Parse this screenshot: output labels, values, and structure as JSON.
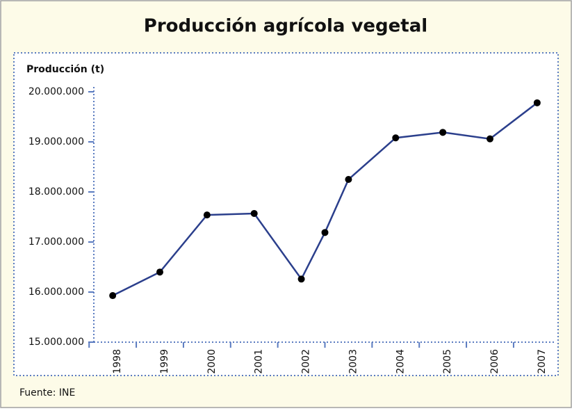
{
  "chart_data": {
    "type": "line",
    "title": "Producción agrícola vegetal",
    "y_label": "Producción (t)",
    "source": "Fuente: INE",
    "x": [
      1998,
      1999,
      2000,
      2001,
      2002,
      2002.5,
      2003,
      2004,
      2005,
      2006,
      2007
    ],
    "xlim": [
      1997.6,
      2007.4
    ],
    "xticks": [
      1998,
      1999,
      2000,
      2001,
      2002,
      2003,
      2004,
      2005,
      2006,
      2007
    ],
    "series": [
      {
        "name": "Producción",
        "color": "#2b3f8c",
        "values": [
          15930000,
          16400000,
          17540000,
          17570000,
          16260000,
          17190000,
          18250000,
          19080000,
          19190000,
          19060000,
          19780000
        ]
      }
    ],
    "ylim": [
      15000000,
      20000000
    ],
    "yticks": [
      {
        "value": 15000000,
        "label": "15.000.000"
      },
      {
        "value": 16000000,
        "label": "16.000.000"
      },
      {
        "value": 17000000,
        "label": "17.000.000"
      },
      {
        "value": 18000000,
        "label": "18.000.000"
      },
      {
        "value": 19000000,
        "label": "19.000.000"
      },
      {
        "value": 20000000,
        "label": "20.000.000"
      }
    ]
  }
}
